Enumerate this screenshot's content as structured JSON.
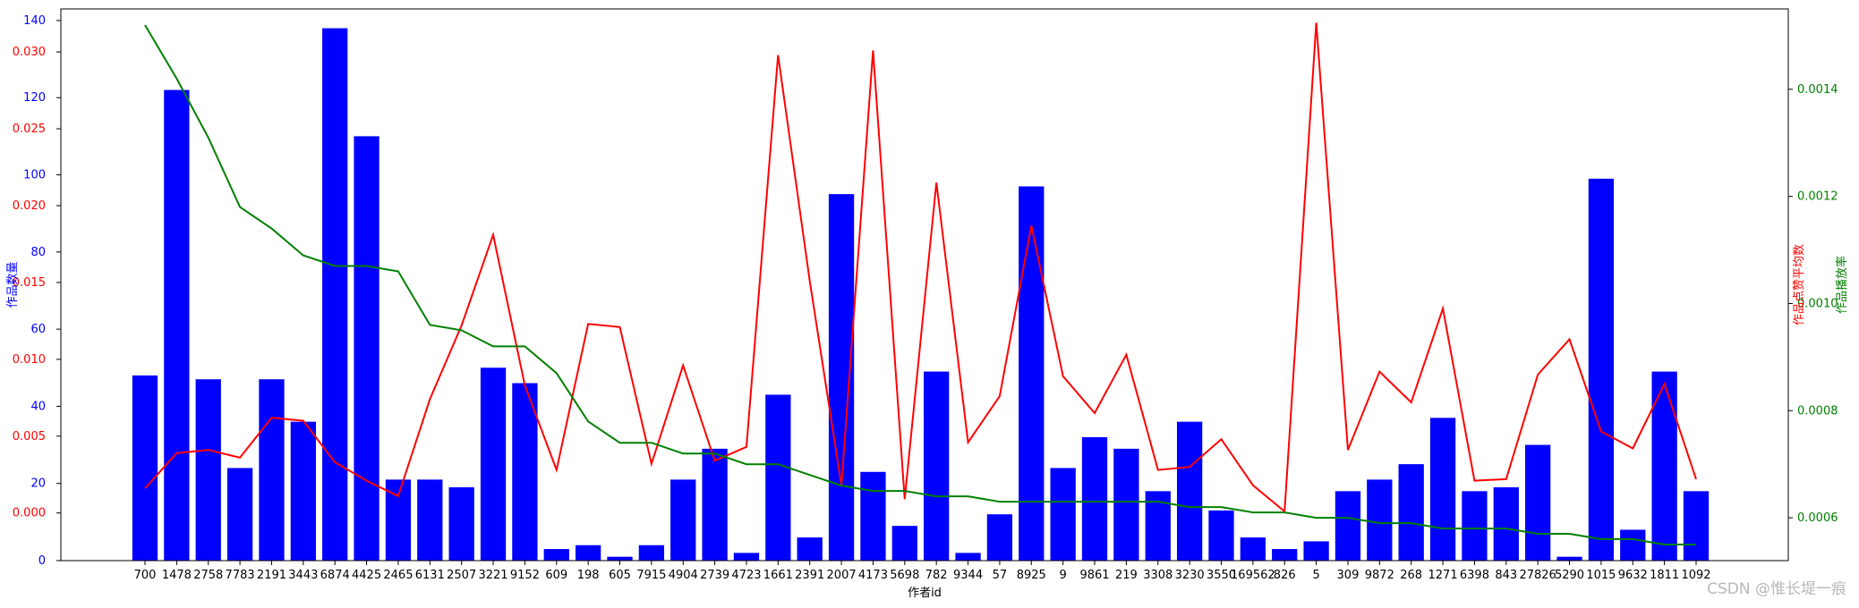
{
  "watermark": "CSDN @惟长堤一痕",
  "chart_data": {
    "type": "bar",
    "xlabel": "作者id",
    "categories": [
      "700",
      "1478",
      "2758",
      "7783",
      "2191",
      "3443",
      "6874",
      "4425",
      "2465",
      "6131",
      "2507",
      "3221",
      "9152",
      "609",
      "198",
      "605",
      "7915",
      "4904",
      "2739",
      "4723",
      "1661",
      "2391",
      "2007",
      "4173",
      "5698",
      "782",
      "9344",
      "57",
      "8925",
      "9",
      "9861",
      "219",
      "3308",
      "3230",
      "3550",
      "169562",
      "826",
      "5",
      "309",
      "9872",
      "268",
      "1271",
      "6398",
      "843",
      "27826",
      "5290",
      "1015",
      "9632",
      "1811",
      "1092"
    ],
    "axes": {
      "count": {
        "label": "作品数量",
        "color": "#0000ff",
        "range": [
          0,
          143
        ],
        "ticks": [
          0,
          20,
          40,
          60,
          80,
          100,
          120,
          140
        ]
      },
      "likes": {
        "label": "作品点赞平均数",
        "color": "#ff0000",
        "range": [
          -0.0031,
          0.0328
        ],
        "ticks": [
          "0.000",
          "0.005",
          "0.010",
          "0.015",
          "0.020",
          "0.025",
          "0.030"
        ]
      },
      "play": {
        "label": "作品播放率",
        "color": "#008000",
        "range": [
          0.00052,
          0.00155
        ],
        "ticks": [
          "0.0006",
          "0.0008",
          "0.0010",
          "0.0012",
          "0.0014"
        ]
      }
    },
    "series": [
      {
        "name": "作品数量",
        "type": "bar",
        "axis": "count",
        "color": "#0000ff",
        "values": [
          48,
          122,
          47,
          24,
          47,
          36,
          138,
          110,
          21,
          21,
          19,
          50,
          46,
          3,
          4,
          1,
          4,
          21,
          29,
          2,
          43,
          6,
          95,
          23,
          9,
          49,
          2,
          12,
          97,
          24,
          32,
          29,
          18,
          36,
          13,
          6,
          3,
          5,
          18,
          21,
          25,
          37,
          18,
          19,
          30,
          1,
          99,
          8,
          49,
          18
        ]
      },
      {
        "name": "作品点赞平均数",
        "type": "line",
        "axis": "likes",
        "color": "#ff0000",
        "values": [
          0.0016,
          0.0039,
          0.0041,
          0.0036,
          0.0062,
          0.006,
          0.0033,
          0.0021,
          0.0011,
          0.0074,
          0.0122,
          0.0181,
          0.0083,
          0.0028,
          0.0123,
          0.0121,
          0.0032,
          0.0096,
          0.0034,
          0.0043,
          0.0298,
          0.0151,
          0.0018,
          0.0301,
          0.0009,
          0.0215,
          0.0046,
          0.0076,
          0.0187,
          0.0089,
          0.0065,
          0.0103,
          0.0028,
          0.003,
          0.0048,
          0.0018,
          0.0001,
          0.0319,
          0.0041,
          0.0092,
          0.0072,
          0.0133,
          0.0021,
          0.0022,
          0.009,
          0.0113,
          0.0053,
          0.0042,
          0.0084,
          0.0022
        ]
      },
      {
        "name": "作品播放率",
        "type": "line",
        "axis": "play",
        "color": "#008000",
        "values": [
          0.00152,
          0.00142,
          0.00131,
          0.00118,
          0.00114,
          0.00109,
          0.00107,
          0.00107,
          0.00106,
          0.00096,
          0.00095,
          0.00092,
          0.00092,
          0.00087,
          0.00078,
          0.00074,
          0.00074,
          0.00072,
          0.00072,
          0.0007,
          0.0007,
          0.00068,
          0.00066,
          0.00065,
          0.00065,
          0.00064,
          0.00064,
          0.00063,
          0.00063,
          0.00063,
          0.00063,
          0.00063,
          0.00063,
          0.00062,
          0.00062,
          0.00061,
          0.00061,
          0.0006,
          0.0006,
          0.00059,
          0.00059,
          0.00058,
          0.00058,
          0.00058,
          0.00057,
          0.00057,
          0.00056,
          0.00056,
          0.00055,
          0.00055
        ]
      }
    ]
  }
}
